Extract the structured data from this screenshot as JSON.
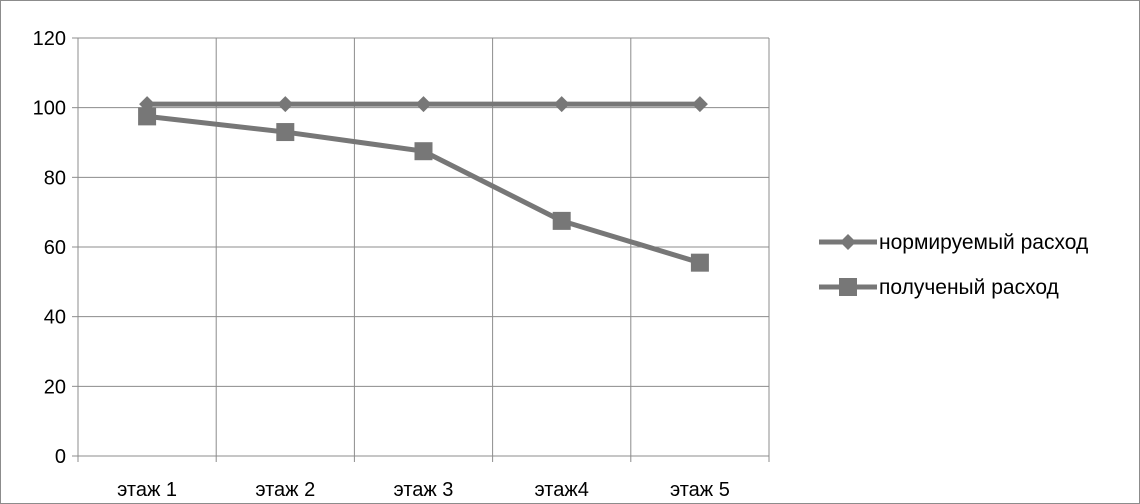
{
  "chart_data": {
    "type": "line",
    "categories": [
      "этаж 1",
      "этаж 2",
      "этаж 3",
      "этаж4",
      "этаж 5"
    ],
    "series": [
      {
        "name": "нормируемый расход",
        "marker": "diamond",
        "color": "#777777",
        "values": [
          101,
          101,
          101,
          101,
          101
        ]
      },
      {
        "name": "полученый расход",
        "marker": "square",
        "color": "#777777",
        "values": [
          97.5,
          93,
          87.5,
          67.5,
          55.5
        ]
      }
    ],
    "ylim": [
      0,
      120
    ],
    "yticks": [
      0,
      20,
      40,
      60,
      80,
      100,
      120
    ],
    "grid": true,
    "legend_position": "right",
    "title": "",
    "xlabel": "",
    "ylabel": ""
  }
}
